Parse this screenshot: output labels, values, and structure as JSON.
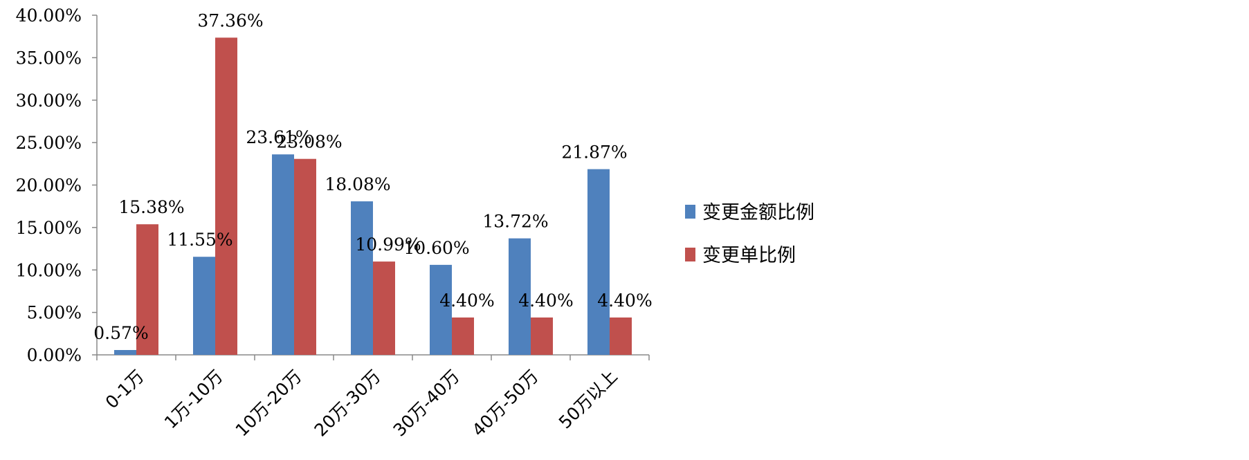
{
  "chart_data": {
    "type": "bar",
    "categories": [
      "0-1万",
      "1万-10万",
      "10万-20万",
      "20万-30万",
      "30万-40万",
      "40万-50万",
      "50万以上"
    ],
    "series": [
      {
        "name": "变更金额比例",
        "color": "#4F81BD",
        "values": [
          0.57,
          11.55,
          23.61,
          18.08,
          10.6,
          13.72,
          21.87
        ],
        "labels": [
          "0.57%",
          "11.55%",
          "23.61%",
          "18.08%",
          "10.60%",
          "13.72%",
          "21.87%"
        ]
      },
      {
        "name": "变更单比例",
        "color": "#C0504D",
        "values": [
          15.38,
          37.36,
          23.08,
          10.99,
          4.4,
          4.4,
          4.4
        ],
        "labels": [
          "15.38%",
          "37.36%",
          "23.08%",
          "10.99%",
          "4.40%",
          "4.40%",
          "4.40%"
        ]
      }
    ],
    "y_ticks": [
      "0.00%",
      "5.00%",
      "10.00%",
      "15.00%",
      "20.00%",
      "25.00%",
      "30.00%",
      "35.00%",
      "40.00%"
    ],
    "ylim": [
      0,
      40
    ],
    "grid": false,
    "legend_position": "right",
    "title": "",
    "xlabel": "",
    "ylabel": ""
  }
}
